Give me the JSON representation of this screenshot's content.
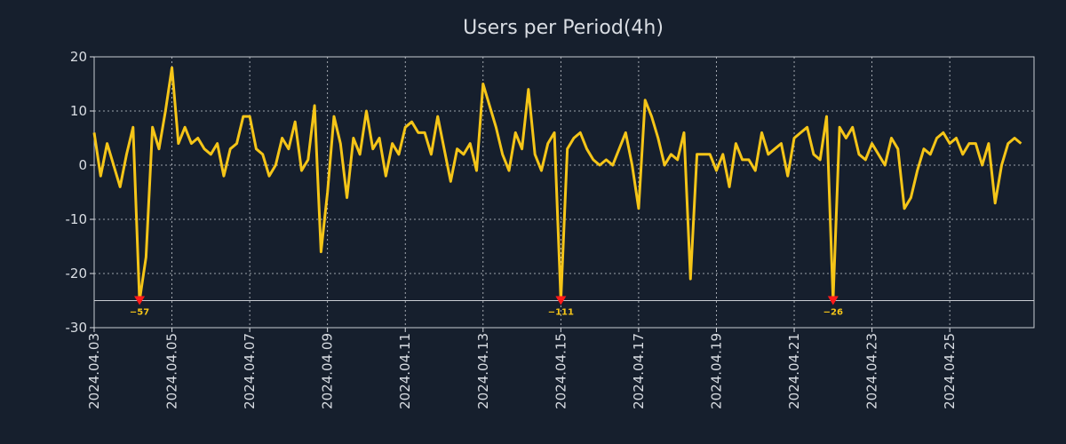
{
  "colors": {
    "background": "#161f2d",
    "line": "#f5c518",
    "grid": "#c8ccd2",
    "text": "#d9dde3",
    "marker": "#ff1a1a",
    "annotation": "#f5c518"
  },
  "chart_data": {
    "type": "line",
    "title": "Users per Period(4h)",
    "xlabel": "",
    "ylabel": "",
    "ylim": [
      -30,
      20
    ],
    "xlim": [
      0,
      145
    ],
    "grid": true,
    "yticks": [
      20,
      10,
      0,
      -10,
      -20,
      -30
    ],
    "ytick_labels": [
      "20",
      "10",
      "0",
      "-10",
      "-20",
      "-30"
    ],
    "xtick_labels": [
      "2024.04.03",
      "2024.04.05",
      "2024.04.07",
      "2024.04.09",
      "2024.04.11",
      "2024.04.13",
      "2024.04.15",
      "2024.04.17",
      "2024.04.19",
      "2024.04.21",
      "2024.04.23",
      "2024.04.25"
    ],
    "xtick_index": [
      0,
      12,
      24,
      36,
      48,
      60,
      72,
      84,
      96,
      108,
      120,
      132
    ],
    "baseline_y": -25,
    "series": [
      {
        "name": "Users",
        "values": [
          6,
          -2,
          4,
          0,
          -4,
          2,
          7,
          -25,
          -17,
          7,
          3,
          10,
          18,
          4,
          7,
          4,
          5,
          3,
          2,
          4,
          -2,
          3,
          4,
          9,
          9,
          3,
          2,
          -2,
          0,
          5,
          3,
          8,
          -1,
          1,
          11,
          -16,
          -5,
          9,
          4,
          -6,
          5,
          2,
          10,
          3,
          5,
          -2,
          4,
          2,
          7,
          8,
          6,
          6,
          2,
          9,
          3,
          -3,
          3,
          2,
          4,
          -1,
          15,
          11,
          7,
          2,
          -1,
          6,
          3,
          14,
          2,
          -1,
          4,
          6,
          -25,
          3,
          5,
          6,
          3,
          1,
          0,
          1,
          0,
          3,
          6,
          0,
          -8,
          12,
          9,
          5,
          0,
          2,
          1,
          6,
          -21,
          2,
          2,
          2,
          -1,
          2,
          -4,
          4,
          1,
          1,
          -1,
          6,
          2,
          3,
          4,
          -2,
          5,
          6,
          7,
          2,
          1,
          9,
          -25,
          7,
          5,
          7,
          2,
          1,
          4,
          2,
          0,
          5,
          3,
          -8,
          -6,
          -1,
          3,
          2,
          5,
          6,
          4,
          5,
          2,
          4,
          4,
          0,
          4,
          -7,
          0,
          4,
          5,
          4
        ]
      }
    ],
    "annotations": [
      {
        "index": 7,
        "value": -25,
        "label": "−57"
      },
      {
        "index": 72,
        "value": -25,
        "label": "−111"
      },
      {
        "index": 114,
        "value": -25,
        "label": "−26"
      }
    ]
  }
}
